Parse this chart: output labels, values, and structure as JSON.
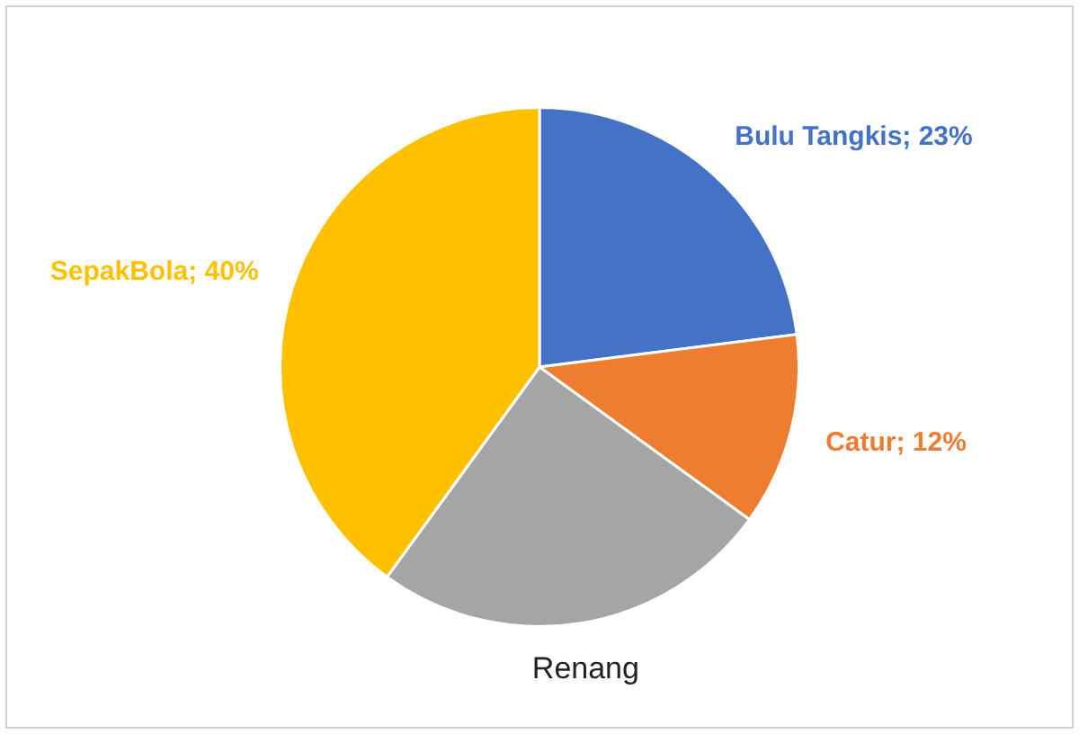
{
  "chart_data": {
    "type": "pie",
    "categories": [
      "Bulu Tangkis",
      "Catur",
      "Renang",
      "SepakBola"
    ],
    "values": [
      23,
      12,
      25,
      40
    ],
    "colors": [
      "#4472c4",
      "#ed7d31",
      "#a5a5a5",
      "#ffc000"
    ],
    "value_labels": [
      "23%",
      "12%",
      null,
      "40%"
    ],
    "legend": false
  }
}
